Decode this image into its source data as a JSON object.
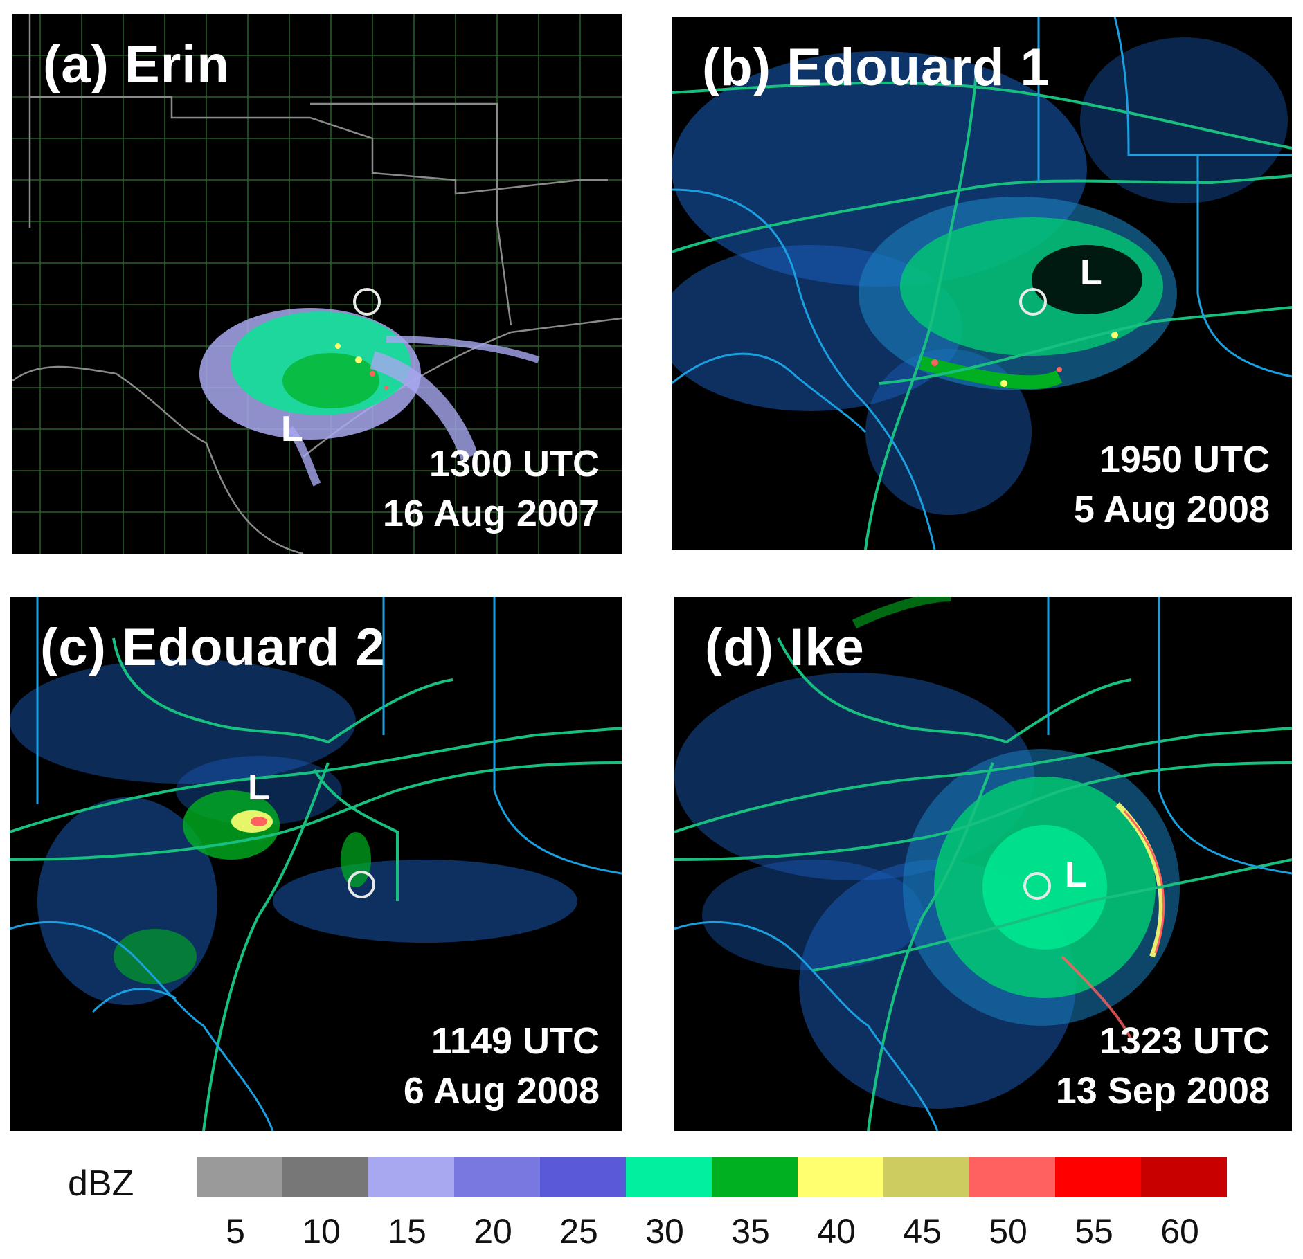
{
  "panels": [
    {
      "id": "a",
      "title": "(a) Erin",
      "time": "1300 UTC",
      "date": "16 Aug 2007",
      "low": "L",
      "bg_lines": "#2e7d2e"
    },
    {
      "id": "b",
      "title": "(b) Edouard 1",
      "time": "1950 UTC",
      "date": "5 Aug 2008",
      "low": "L",
      "bg_lines": "#18c080"
    },
    {
      "id": "c",
      "title": "(c) Edouard 2",
      "time": "1149 UTC",
      "date": "6 Aug 2008",
      "low": "L",
      "bg_lines": "#18c080"
    },
    {
      "id": "d",
      "title": "(d) Ike",
      "time": "1323 UTC",
      "date": "13 Sep 2008",
      "low": "L",
      "bg_lines": "#18c080"
    }
  ],
  "legend": {
    "label": "dBZ",
    "ticks": [
      "5",
      "10",
      "15",
      "20",
      "25",
      "30",
      "35",
      "40",
      "45",
      "50",
      "55",
      "60"
    ],
    "colors": [
      "#9a9a9a",
      "#777777",
      "#a8a8f0",
      "#7878e0",
      "#5a5ad8",
      "#00f0a0",
      "#00b020",
      "#ffff70",
      "#cccc60",
      "#ff6060",
      "#ff0000",
      "#c80000"
    ]
  }
}
